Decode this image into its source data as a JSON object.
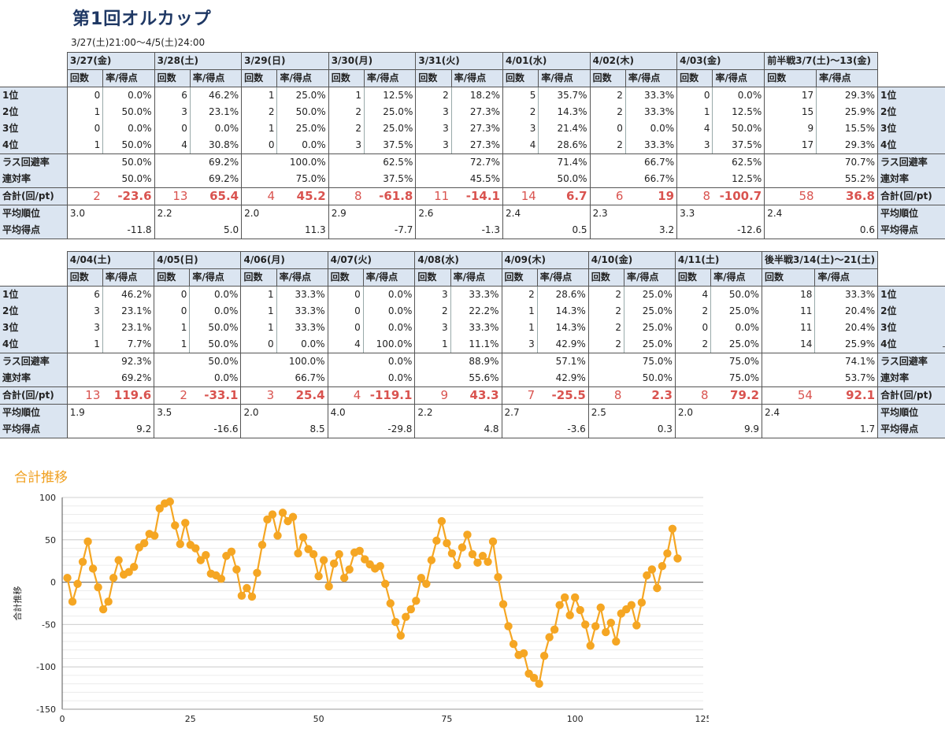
{
  "title": "第1回オルカップ",
  "subtitle": "3/27(土)21:00～4/5(土)24:00",
  "col_headers": {
    "count": "回数",
    "rate": "率/得点"
  },
  "row_labels": {
    "r1": "1位",
    "r2": "2位",
    "r3": "3位",
    "r4": "4位",
    "avoid": "ラス回避率",
    "rentai": "連対率",
    "total": "合計(回/pt)",
    "avg_rank": "平均順位",
    "avg_pts": "平均得点"
  },
  "tables": [
    {
      "days": [
        {
          "label": "3/27(金)",
          "r1": [
            "0",
            "0.0%"
          ],
          "r2": [
            "1",
            "50.0%"
          ],
          "r3": [
            "0",
            "0.0%"
          ],
          "r4": [
            "1",
            "50.0%"
          ],
          "avoid": "50.0%",
          "rentai": "50.0%",
          "total_n": "2",
          "total_pt": "-23.6",
          "avg_rank": "3.0",
          "avg_pts": "-11.8"
        },
        {
          "label": "3/28(土)",
          "r1": [
            "6",
            "46.2%"
          ],
          "r2": [
            "3",
            "23.1%"
          ],
          "r3": [
            "0",
            "0.0%"
          ],
          "r4": [
            "4",
            "30.8%"
          ],
          "avoid": "69.2%",
          "rentai": "69.2%",
          "total_n": "13",
          "total_pt": "65.4",
          "avg_rank": "2.2",
          "avg_pts": "5.0"
        },
        {
          "label": "3/29(日)",
          "r1": [
            "1",
            "25.0%"
          ],
          "r2": [
            "2",
            "50.0%"
          ],
          "r3": [
            "1",
            "25.0%"
          ],
          "r4": [
            "0",
            "0.0%"
          ],
          "avoid": "100.0%",
          "rentai": "75.0%",
          "total_n": "4",
          "total_pt": "45.2",
          "avg_rank": "2.0",
          "avg_pts": "11.3"
        },
        {
          "label": "3/30(月)",
          "r1": [
            "1",
            "12.5%"
          ],
          "r2": [
            "2",
            "25.0%"
          ],
          "r3": [
            "2",
            "25.0%"
          ],
          "r4": [
            "3",
            "37.5%"
          ],
          "avoid": "62.5%",
          "rentai": "37.5%",
          "total_n": "8",
          "total_pt": "-61.8",
          "avg_rank": "2.9",
          "avg_pts": "-7.7"
        },
        {
          "label": "3/31(火)",
          "r1": [
            "2",
            "18.2%"
          ],
          "r2": [
            "3",
            "27.3%"
          ],
          "r3": [
            "3",
            "27.3%"
          ],
          "r4": [
            "3",
            "27.3%"
          ],
          "avoid": "72.7%",
          "rentai": "45.5%",
          "total_n": "11",
          "total_pt": "-14.1",
          "avg_rank": "2.6",
          "avg_pts": "-1.3"
        },
        {
          "label": "4/01(水)",
          "r1": [
            "5",
            "35.7%"
          ],
          "r2": [
            "2",
            "14.3%"
          ],
          "r3": [
            "3",
            "21.4%"
          ],
          "r4": [
            "4",
            "28.6%"
          ],
          "avoid": "71.4%",
          "rentai": "50.0%",
          "total_n": "14",
          "total_pt": "6.7",
          "avg_rank": "2.4",
          "avg_pts": "0.5"
        },
        {
          "label": "4/02(木)",
          "r1": [
            "2",
            "33.3%"
          ],
          "r2": [
            "2",
            "33.3%"
          ],
          "r3": [
            "0",
            "0.0%"
          ],
          "r4": [
            "2",
            "33.3%"
          ],
          "avoid": "66.7%",
          "rentai": "66.7%",
          "total_n": "6",
          "total_pt": "19",
          "avg_rank": "2.3",
          "avg_pts": "3.2"
        },
        {
          "label": "4/03(金)",
          "r1": [
            "0",
            "0.0%"
          ],
          "r2": [
            "1",
            "12.5%"
          ],
          "r3": [
            "4",
            "50.0%"
          ],
          "r4": [
            "3",
            "37.5%"
          ],
          "avoid": "62.5%",
          "rentai": "12.5%",
          "total_n": "8",
          "total_pt": "-100.7",
          "avg_rank": "3.3",
          "avg_pts": "-12.6"
        }
      ],
      "summary": {
        "label": "前半戦3/7(土)～13(金)",
        "r1": [
          "17",
          "29.3%"
        ],
        "r2": [
          "15",
          "25.9%"
        ],
        "r3": [
          "9",
          "15.5%"
        ],
        "r4": [
          "17",
          "29.3%"
        ],
        "avoid": "70.7%",
        "rentai": "55.2%",
        "total_n": "58",
        "total_pt": "36.8",
        "avg_rank": "2.4",
        "avg_pts": "0.6"
      }
    },
    {
      "days": [
        {
          "label": "4/04(土)",
          "r1": [
            "6",
            "46.2%"
          ],
          "r2": [
            "3",
            "23.1%"
          ],
          "r3": [
            "3",
            "23.1%"
          ],
          "r4": [
            "1",
            "7.7%"
          ],
          "avoid": "92.3%",
          "rentai": "69.2%",
          "total_n": "13",
          "total_pt": "119.6",
          "avg_rank": "1.9",
          "avg_pts": "9.2"
        },
        {
          "label": "4/05(日)",
          "r1": [
            "0",
            "0.0%"
          ],
          "r2": [
            "0",
            "0.0%"
          ],
          "r3": [
            "1",
            "50.0%"
          ],
          "r4": [
            "1",
            "50.0%"
          ],
          "avoid": "50.0%",
          "rentai": "0.0%",
          "total_n": "2",
          "total_pt": "-33.1",
          "avg_rank": "3.5",
          "avg_pts": "-16.6"
        },
        {
          "label": "4/06(月)",
          "r1": [
            "1",
            "33.3%"
          ],
          "r2": [
            "1",
            "33.3%"
          ],
          "r3": [
            "1",
            "33.3%"
          ],
          "r4": [
            "0",
            "0.0%"
          ],
          "avoid": "100.0%",
          "rentai": "66.7%",
          "total_n": "3",
          "total_pt": "25.4",
          "avg_rank": "2.0",
          "avg_pts": "8.5"
        },
        {
          "label": "4/07(火)",
          "r1": [
            "0",
            "0.0%"
          ],
          "r2": [
            "0",
            "0.0%"
          ],
          "r3": [
            "0",
            "0.0%"
          ],
          "r4": [
            "4",
            "100.0%"
          ],
          "avoid": "0.0%",
          "rentai": "0.0%",
          "total_n": "4",
          "total_pt": "-119.1",
          "avg_rank": "4.0",
          "avg_pts": "-29.8"
        },
        {
          "label": "4/08(水)",
          "r1": [
            "3",
            "33.3%"
          ],
          "r2": [
            "2",
            "22.2%"
          ],
          "r3": [
            "3",
            "33.3%"
          ],
          "r4": [
            "1",
            "11.1%"
          ],
          "avoid": "88.9%",
          "rentai": "55.6%",
          "total_n": "9",
          "total_pt": "43.3",
          "avg_rank": "2.2",
          "avg_pts": "4.8"
        },
        {
          "label": "4/09(木)",
          "r1": [
            "2",
            "28.6%"
          ],
          "r2": [
            "1",
            "14.3%"
          ],
          "r3": [
            "1",
            "14.3%"
          ],
          "r4": [
            "3",
            "42.9%"
          ],
          "avoid": "57.1%",
          "rentai": "42.9%",
          "total_n": "7",
          "total_pt": "-25.5",
          "avg_rank": "2.7",
          "avg_pts": "-3.6"
        },
        {
          "label": "4/10(金)",
          "r1": [
            "2",
            "25.0%"
          ],
          "r2": [
            "2",
            "25.0%"
          ],
          "r3": [
            "2",
            "25.0%"
          ],
          "r4": [
            "2",
            "25.0%"
          ],
          "avoid": "75.0%",
          "rentai": "50.0%",
          "total_n": "8",
          "total_pt": "2.3",
          "avg_rank": "2.5",
          "avg_pts": "0.3"
        },
        {
          "label": "4/11(土)",
          "r1": [
            "4",
            "50.0%"
          ],
          "r2": [
            "2",
            "25.0%"
          ],
          "r3": [
            "0",
            "0.0%"
          ],
          "r4": [
            "2",
            "25.0%"
          ],
          "avoid": "75.0%",
          "rentai": "75.0%",
          "total_n": "8",
          "total_pt": "79.2",
          "avg_rank": "2.0",
          "avg_pts": "9.9"
        }
      ],
      "summary": {
        "label": "後半戦3/14(土)～21(土)",
        "r1": [
          "18",
          "33.3%"
        ],
        "r2": [
          "11",
          "20.4%"
        ],
        "r3": [
          "11",
          "20.4%"
        ],
        "r4": [
          "14",
          "25.9%"
        ],
        "avoid": "74.1%",
        "rentai": "53.7%",
        "total_n": "54",
        "total_pt": "92.1",
        "avg_rank": "2.4",
        "avg_pts": "1.7"
      }
    }
  ],
  "chart_heading": "合計推移",
  "chart_data": {
    "type": "line",
    "title": "",
    "xlabel": "",
    "ylabel": "合計推移",
    "xlim": [
      0,
      125
    ],
    "ylim": [
      -150,
      100
    ],
    "xticks": [
      0,
      25,
      50,
      75,
      100,
      125
    ],
    "yticks": [
      100,
      50,
      0,
      -50,
      -100,
      -150
    ],
    "grid": true,
    "series": [
      {
        "color": "#f5a623",
        "x": [
          1,
          2,
          3,
          4,
          5,
          6,
          7,
          8,
          9,
          10,
          11,
          12,
          13,
          14,
          15,
          16,
          17,
          18,
          19,
          20,
          21,
          22,
          23,
          24,
          25,
          26,
          27,
          28,
          29,
          30,
          31,
          32,
          33,
          34,
          35,
          36,
          37,
          38,
          39,
          40,
          41,
          42,
          43,
          44,
          45,
          46,
          47,
          48,
          49,
          50,
          51,
          52,
          53,
          54,
          55,
          56,
          57,
          58,
          59,
          60,
          61,
          62,
          63,
          64,
          65,
          66,
          67,
          68,
          69,
          70,
          71,
          72,
          73,
          74,
          75,
          76,
          77,
          78,
          79,
          80,
          81,
          82,
          83,
          84,
          85,
          86,
          87,
          88,
          89,
          90,
          91,
          92,
          93,
          94,
          95,
          96,
          97,
          98,
          99,
          100,
          101,
          102,
          103,
          104,
          105,
          106,
          107,
          108,
          109,
          110,
          111,
          112,
          113,
          114,
          115,
          116,
          117,
          118,
          119,
          120
        ],
        "values": [
          5,
          -23,
          -2,
          24,
          48,
          16,
          -6,
          -32,
          -23,
          5,
          26,
          9,
          12,
          18,
          41,
          46,
          57,
          55,
          87,
          93,
          95,
          67,
          45,
          70,
          44,
          40,
          26,
          32,
          10,
          8,
          4,
          31,
          36,
          15,
          -16,
          -7,
          -17,
          11,
          44,
          74,
          80,
          55,
          82,
          72,
          77,
          34,
          53,
          39,
          33,
          7,
          26,
          -5,
          22,
          33,
          5,
          15,
          35,
          37,
          27,
          21,
          16,
          19,
          -2,
          -25,
          -47,
          -63,
          -41,
          -32,
          -22,
          5,
          -2,
          26,
          49,
          72,
          46,
          34,
          20,
          41,
          56,
          33,
          23,
          31,
          24,
          48,
          6,
          -26,
          -52,
          -73,
          -86,
          -84,
          -108,
          -113,
          -120,
          -87,
          -65,
          -56,
          -27,
          -18,
          -39,
          -18,
          -33,
          -50,
          -75,
          -52,
          -30,
          -59,
          -48,
          -70,
          -37,
          -32,
          -27,
          -51,
          -24,
          8,
          15,
          -7,
          19,
          34,
          63,
          28
        ]
      }
    ]
  }
}
